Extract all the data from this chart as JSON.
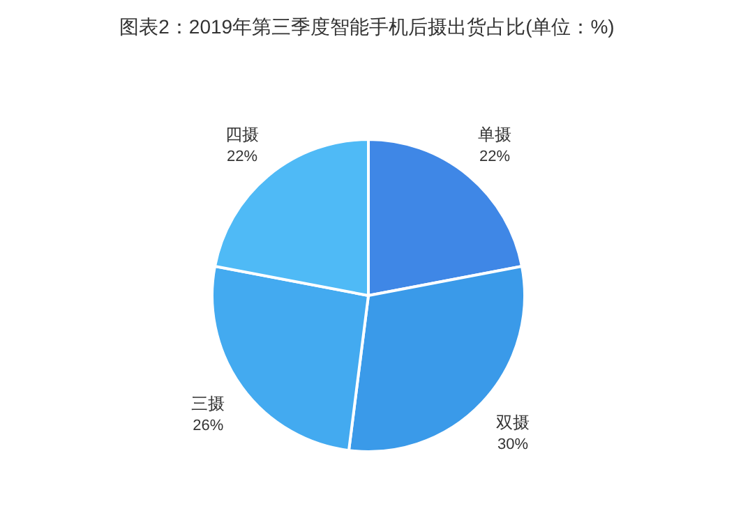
{
  "chart_data": {
    "type": "pie",
    "title": "图表2：2019年第三季度智能手机后摄出货占比(单位：%)",
    "categories": [
      "单摄",
      "双摄",
      "三摄",
      "四摄"
    ],
    "values": [
      22,
      30,
      26,
      22
    ],
    "colors": [
      "#3f87e6",
      "#3a9ae9",
      "#43aaf0",
      "#4fbaf6"
    ],
    "value_labels": [
      "22%",
      "30%",
      "26%",
      "22%"
    ]
  }
}
